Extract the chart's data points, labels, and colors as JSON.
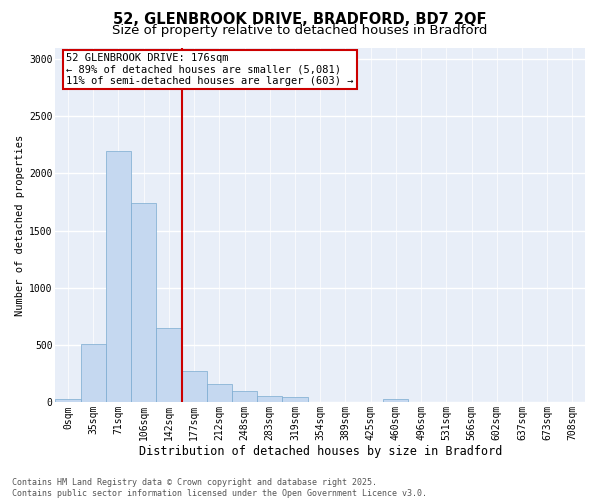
{
  "title": "52, GLENBROOK DRIVE, BRADFORD, BD7 2QF",
  "subtitle": "Size of property relative to detached houses in Bradford",
  "xlabel": "Distribution of detached houses by size in Bradford",
  "ylabel": "Number of detached properties",
  "bar_color": "#c5d8f0",
  "bar_edge_color": "#7aaad0",
  "vline_color": "#cc0000",
  "background_color": "#e8eef8",
  "annotation_line1": "52 GLENBROOK DRIVE: 176sqm",
  "annotation_line2": "← 89% of detached houses are smaller (5,081)",
  "annotation_line3": "11% of semi-detached houses are larger (603) →",
  "annotation_box_color": "#ffffff",
  "annotation_box_edge": "#cc0000",
  "categories": [
    "0sqm",
    "35sqm",
    "71sqm",
    "106sqm",
    "142sqm",
    "177sqm",
    "212sqm",
    "248sqm",
    "283sqm",
    "319sqm",
    "354sqm",
    "389sqm",
    "425sqm",
    "460sqm",
    "496sqm",
    "531sqm",
    "566sqm",
    "602sqm",
    "637sqm",
    "673sqm",
    "708sqm"
  ],
  "values": [
    28,
    510,
    2200,
    1740,
    650,
    270,
    160,
    100,
    58,
    50,
    0,
    0,
    0,
    28,
    0,
    0,
    0,
    0,
    0,
    0,
    0
  ],
  "vline_x": 4.5,
  "ylim": [
    0,
    3100
  ],
  "yticks": [
    0,
    500,
    1000,
    1500,
    2000,
    2500,
    3000
  ],
  "footer": "Contains HM Land Registry data © Crown copyright and database right 2025.\nContains public sector information licensed under the Open Government Licence v3.0.",
  "title_fontsize": 10.5,
  "subtitle_fontsize": 9.5,
  "xlabel_fontsize": 8.5,
  "ylabel_fontsize": 7.5,
  "tick_fontsize": 7,
  "footer_fontsize": 6,
  "annotation_fontsize": 7.5
}
